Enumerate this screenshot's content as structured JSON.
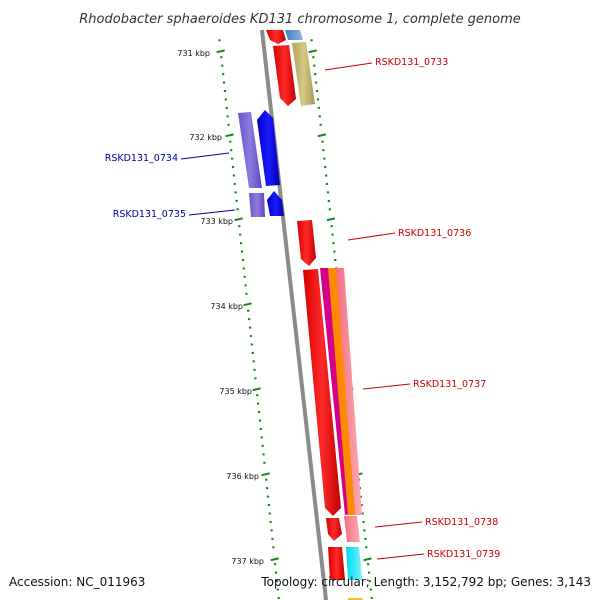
{
  "title": "Rhodobacter sphaeroides KD131 chromosome 1, complete genome",
  "kbp_labels": [
    "731 kbp",
    "732 kbp",
    "733 kbp",
    "734 kbp",
    "735 kbp",
    "736 kbp",
    "737 kbp"
  ],
  "gene_labels": {
    "g0733": "RSKD131_0733",
    "g0734": "RSKD131_0734",
    "g0735": "RSKD131_0735",
    "g0736": "RSKD131_0736",
    "g0737": "RSKD131_0737",
    "g0738": "RSKD131_0738",
    "g0739": "RSKD131_0739"
  },
  "footer": {
    "accession": "Accession: NC_011963",
    "topology": "Topology: circular; Length: 3,152,792 bp; Genes: 3,143"
  },
  "colors": {
    "forward_label": "#cc0000",
    "reverse_label": "#0000aa",
    "ruler": "#118811",
    "strand": "#888888"
  }
}
